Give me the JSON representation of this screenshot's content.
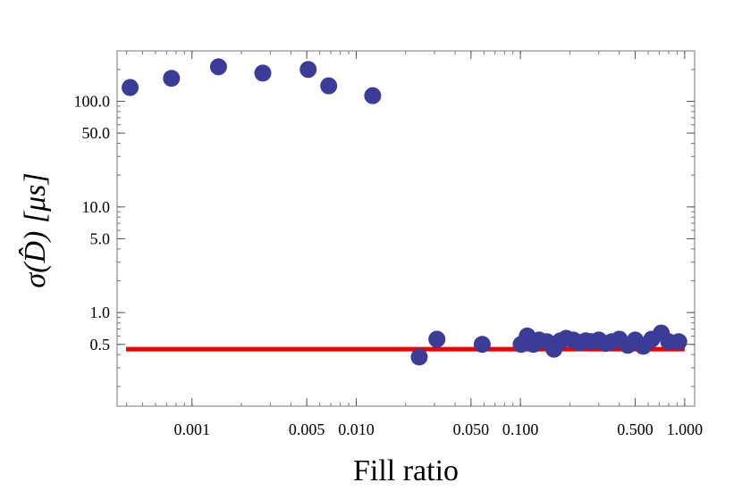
{
  "chart_data": {
    "type": "scatter",
    "title": "",
    "xlabel": "Fill ratio",
    "ylabel": "σ(D̂) [μs]",
    "xscale": "log",
    "yscale": "log",
    "xlim": [
      0.00035,
      1.15
    ],
    "ylim": [
      0.13,
      300
    ],
    "grid": false,
    "legend": "none",
    "x_ticks": [
      {
        "value": 0.001,
        "label": "0.001"
      },
      {
        "value": 0.005,
        "label": "0.005"
      },
      {
        "value": 0.01,
        "label": "0.010"
      },
      {
        "value": 0.05,
        "label": "0.050"
      },
      {
        "value": 0.1,
        "label": "0.100"
      },
      {
        "value": 0.5,
        "label": "0.500"
      },
      {
        "value": 1.0,
        "label": "1.000"
      }
    ],
    "y_ticks": [
      {
        "value": 0.5,
        "label": "0.5"
      },
      {
        "value": 1.0,
        "label": "1.0"
      },
      {
        "value": 5.0,
        "label": "5.0"
      },
      {
        "value": 10.0,
        "label": "10.0"
      },
      {
        "value": 50.0,
        "label": "50.0"
      },
      {
        "value": 100.0,
        "label": "100.0"
      }
    ],
    "series": [
      {
        "marker_color": "#3b3b98",
        "points": [
          {
            "x": 0.00042,
            "y": 135
          },
          {
            "x": 0.00075,
            "y": 165
          },
          {
            "x": 0.00145,
            "y": 212
          },
          {
            "x": 0.0027,
            "y": 185
          },
          {
            "x": 0.0051,
            "y": 200
          },
          {
            "x": 0.0068,
            "y": 140
          },
          {
            "x": 0.0126,
            "y": 113
          },
          {
            "x": 0.0242,
            "y": 0.38
          },
          {
            "x": 0.031,
            "y": 0.56
          },
          {
            "x": 0.0585,
            "y": 0.5
          },
          {
            "x": 0.101,
            "y": 0.5
          },
          {
            "x": 0.11,
            "y": 0.6
          },
          {
            "x": 0.12,
            "y": 0.5
          },
          {
            "x": 0.13,
            "y": 0.55
          },
          {
            "x": 0.145,
            "y": 0.53
          },
          {
            "x": 0.16,
            "y": 0.45
          },
          {
            "x": 0.175,
            "y": 0.54
          },
          {
            "x": 0.19,
            "y": 0.57
          },
          {
            "x": 0.21,
            "y": 0.55
          },
          {
            "x": 0.23,
            "y": 0.52
          },
          {
            "x": 0.25,
            "y": 0.54
          },
          {
            "x": 0.27,
            "y": 0.53
          },
          {
            "x": 0.3,
            "y": 0.55
          },
          {
            "x": 0.33,
            "y": 0.51
          },
          {
            "x": 0.36,
            "y": 0.53
          },
          {
            "x": 0.4,
            "y": 0.56
          },
          {
            "x": 0.45,
            "y": 0.49
          },
          {
            "x": 0.5,
            "y": 0.55
          },
          {
            "x": 0.56,
            "y": 0.48
          },
          {
            "x": 0.63,
            "y": 0.56
          },
          {
            "x": 0.72,
            "y": 0.64
          },
          {
            "x": 0.8,
            "y": 0.53
          },
          {
            "x": 0.92,
            "y": 0.53
          }
        ]
      }
    ],
    "reference_line": {
      "color": "#ee0000",
      "y": 0.45,
      "x_start": 0.00035,
      "x_end": 1.0
    }
  }
}
